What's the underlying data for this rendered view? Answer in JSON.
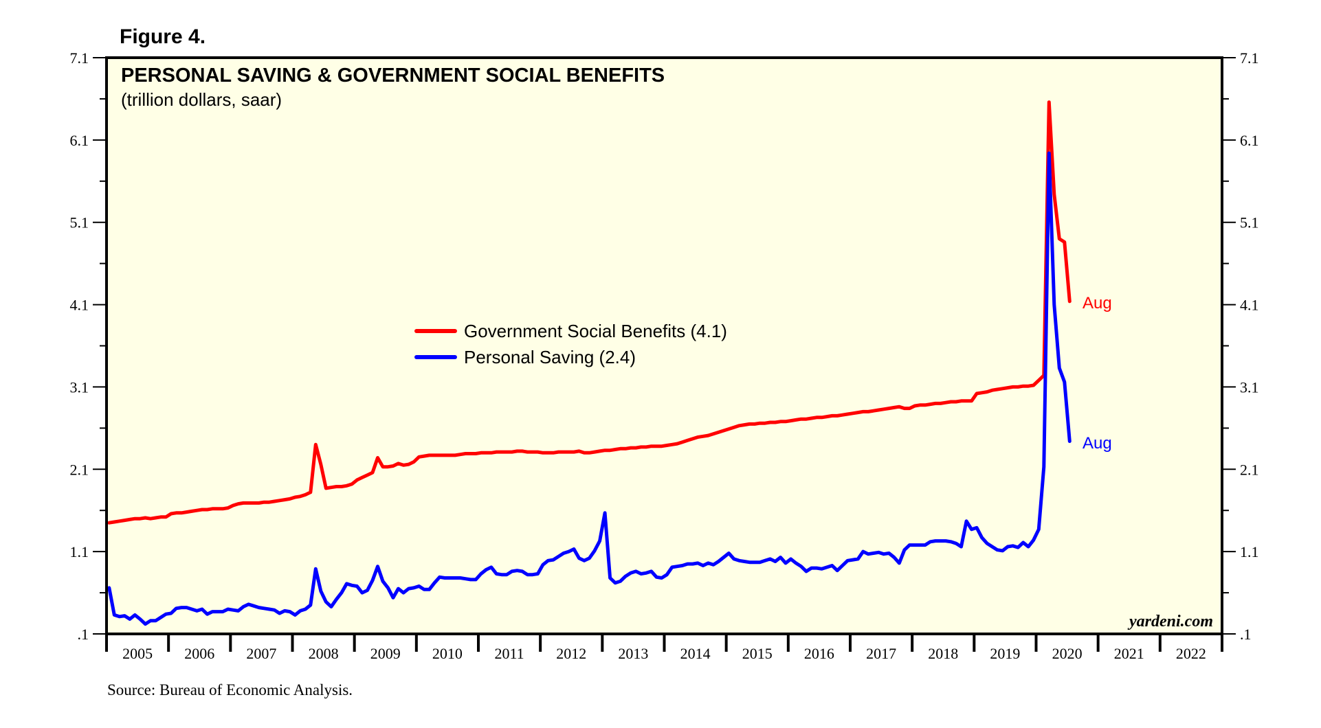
{
  "figure_label": "Figure 4.",
  "source": "Source: Bureau of Economic Analysis.",
  "watermark": "yardeni.com",
  "colors": {
    "background": "#ffffe6",
    "government_social_benefits": "#ff0000",
    "personal_saving": "#0000ff",
    "axis": "#000000"
  },
  "chart_data": {
    "type": "line",
    "title": "PERSONAL SAVING & GOVERNMENT SOCIAL BENEFITS",
    "subtitle": "(trillion dollars, saar)",
    "xlabel": "",
    "ylabel": "",
    "ylim": [
      0.1,
      7.1
    ],
    "y_ticks": [
      ".1",
      "1.1",
      "2.1",
      "3.1",
      "4.1",
      "5.1",
      "6.1",
      "7.1"
    ],
    "y_tick_values": [
      0.1,
      1.1,
      2.1,
      3.1,
      4.1,
      5.1,
      6.1,
      7.1
    ],
    "y_minor_tick_values": [
      0.6,
      1.6,
      2.6,
      3.6,
      4.6,
      5.6,
      6.6
    ],
    "y_axis_sides": "left-and-right",
    "x_range": [
      "2005-01",
      "2022-12"
    ],
    "x_ticks": [
      "2005",
      "2006",
      "2007",
      "2008",
      "2009",
      "2010",
      "2011",
      "2012",
      "2013",
      "2014",
      "2015",
      "2016",
      "2017",
      "2018",
      "2019",
      "2020",
      "2021",
      "2022"
    ],
    "frequency": "monthly",
    "x_start": "2005-01",
    "grid": false,
    "legend_position": "center-left",
    "series": [
      {
        "name": "Government Social Benefits",
        "legend_label": "Government Social Benefits (4.1)",
        "color": "#ff0000",
        "end_label": "Aug",
        "values": [
          1.45,
          1.46,
          1.47,
          1.48,
          1.49,
          1.5,
          1.5,
          1.51,
          1.5,
          1.51,
          1.52,
          1.52,
          1.56,
          1.57,
          1.57,
          1.58,
          1.59,
          1.6,
          1.61,
          1.61,
          1.62,
          1.62,
          1.62,
          1.63,
          1.66,
          1.68,
          1.69,
          1.69,
          1.69,
          1.69,
          1.7,
          1.7,
          1.71,
          1.72,
          1.73,
          1.74,
          1.76,
          1.77,
          1.79,
          1.82,
          2.4,
          2.16,
          1.87,
          1.88,
          1.89,
          1.89,
          1.9,
          1.92,
          1.97,
          2.0,
          2.03,
          2.06,
          2.24,
          2.13,
          2.13,
          2.14,
          2.17,
          2.15,
          2.16,
          2.19,
          2.25,
          2.26,
          2.27,
          2.27,
          2.27,
          2.27,
          2.27,
          2.27,
          2.28,
          2.29,
          2.29,
          2.29,
          2.3,
          2.3,
          2.3,
          2.31,
          2.31,
          2.31,
          2.31,
          2.32,
          2.32,
          2.31,
          2.31,
          2.31,
          2.3,
          2.3,
          2.3,
          2.31,
          2.31,
          2.31,
          2.31,
          2.32,
          2.3,
          2.3,
          2.31,
          2.32,
          2.33,
          2.33,
          2.34,
          2.35,
          2.35,
          2.36,
          2.36,
          2.37,
          2.37,
          2.38,
          2.38,
          2.38,
          2.39,
          2.4,
          2.41,
          2.43,
          2.45,
          2.47,
          2.49,
          2.5,
          2.51,
          2.53,
          2.55,
          2.57,
          2.59,
          2.61,
          2.63,
          2.64,
          2.65,
          2.65,
          2.66,
          2.66,
          2.67,
          2.67,
          2.68,
          2.68,
          2.69,
          2.7,
          2.71,
          2.71,
          2.72,
          2.73,
          2.73,
          2.74,
          2.75,
          2.75,
          2.76,
          2.77,
          2.78,
          2.79,
          2.8,
          2.8,
          2.81,
          2.82,
          2.83,
          2.84,
          2.85,
          2.86,
          2.84,
          2.84,
          2.87,
          2.88,
          2.88,
          2.89,
          2.9,
          2.9,
          2.91,
          2.92,
          2.92,
          2.93,
          2.93,
          2.93,
          3.02,
          3.03,
          3.04,
          3.06,
          3.07,
          3.08,
          3.09,
          3.1,
          3.1,
          3.11,
          3.11,
          3.12,
          3.18,
          3.24,
          6.56,
          5.44,
          4.9,
          4.86,
          4.14
        ]
      },
      {
        "name": "Personal Saving",
        "legend_label": "Personal Saving (2.4)",
        "color": "#0000ff",
        "end_label": "Aug",
        "values": [
          0.66,
          0.33,
          0.31,
          0.32,
          0.28,
          0.33,
          0.28,
          0.22,
          0.26,
          0.26,
          0.3,
          0.34,
          0.35,
          0.41,
          0.42,
          0.42,
          0.4,
          0.38,
          0.4,
          0.34,
          0.37,
          0.37,
          0.37,
          0.4,
          0.39,
          0.38,
          0.43,
          0.46,
          0.44,
          0.42,
          0.41,
          0.4,
          0.39,
          0.35,
          0.38,
          0.37,
          0.33,
          0.38,
          0.4,
          0.45,
          0.89,
          0.62,
          0.49,
          0.43,
          0.52,
          0.6,
          0.71,
          0.69,
          0.68,
          0.6,
          0.63,
          0.75,
          0.92,
          0.74,
          0.66,
          0.54,
          0.65,
          0.6,
          0.65,
          0.66,
          0.68,
          0.64,
          0.64,
          0.72,
          0.79,
          0.78,
          0.78,
          0.78,
          0.78,
          0.77,
          0.76,
          0.76,
          0.83,
          0.88,
          0.91,
          0.83,
          0.82,
          0.82,
          0.86,
          0.87,
          0.86,
          0.82,
          0.82,
          0.83,
          0.94,
          0.99,
          1.0,
          1.04,
          1.08,
          1.1,
          1.13,
          1.02,
          0.99,
          1.02,
          1.11,
          1.23,
          1.57,
          0.78,
          0.72,
          0.74,
          0.8,
          0.84,
          0.86,
          0.83,
          0.84,
          0.86,
          0.79,
          0.78,
          0.82,
          0.91,
          0.92,
          0.93,
          0.95,
          0.95,
          0.96,
          0.93,
          0.96,
          0.94,
          0.98,
          1.03,
          1.08,
          1.01,
          0.99,
          0.98,
          0.97,
          0.97,
          0.97,
          0.99,
          1.01,
          0.98,
          1.03,
          0.96,
          1.01,
          0.96,
          0.92,
          0.86,
          0.9,
          0.9,
          0.89,
          0.91,
          0.93,
          0.87,
          0.93,
          0.99,
          1.0,
          1.01,
          1.1,
          1.07,
          1.08,
          1.09,
          1.07,
          1.08,
          1.03,
          0.96,
          1.12,
          1.18,
          1.18,
          1.18,
          1.18,
          1.22,
          1.23,
          1.23,
          1.23,
          1.22,
          1.2,
          1.16,
          1.47,
          1.37,
          1.39,
          1.27,
          1.2,
          1.16,
          1.12,
          1.11,
          1.16,
          1.17,
          1.15,
          1.21,
          1.16,
          1.24,
          1.37,
          2.13,
          5.94,
          4.1,
          3.33,
          3.16,
          2.44
        ]
      }
    ]
  }
}
